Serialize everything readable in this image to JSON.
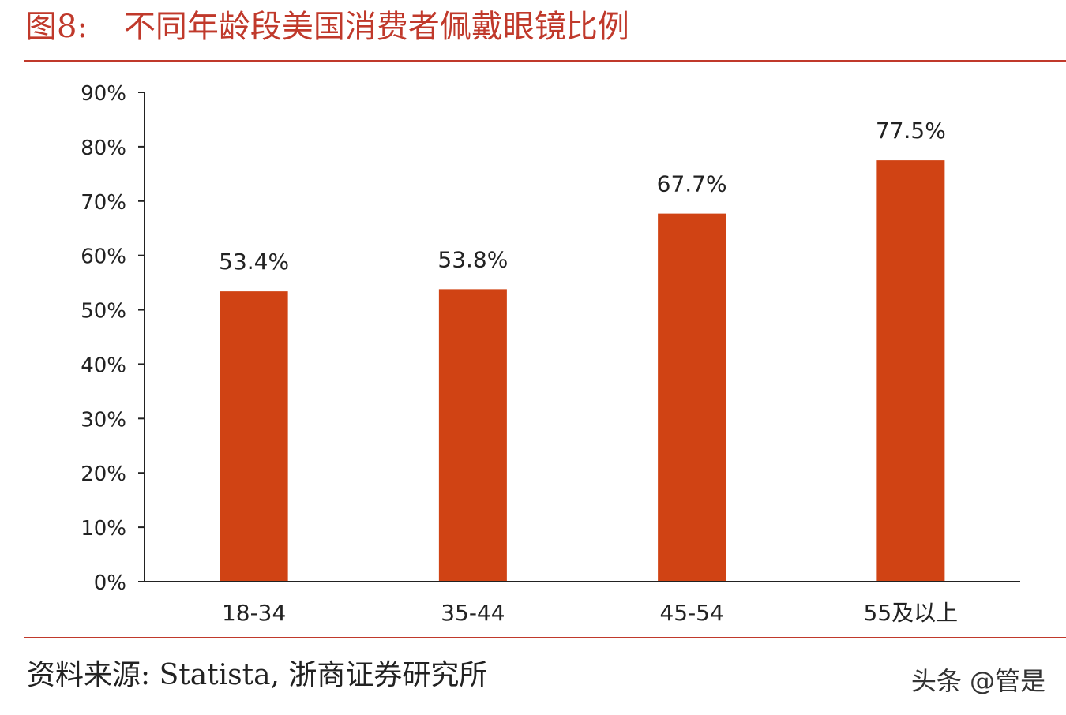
{
  "figure": {
    "label": "图8:",
    "title": "不同年龄段美国消费者佩戴眼镜比例"
  },
  "chart_data": {
    "type": "bar",
    "categories": [
      "18-34",
      "35-44",
      "45-54",
      "55及以上"
    ],
    "values": [
      53.4,
      53.8,
      67.7,
      77.5
    ],
    "data_labels": [
      "53.4%",
      "53.8%",
      "67.7%",
      "77.5%"
    ],
    "ylim": [
      0,
      90
    ],
    "yticks": [
      0,
      10,
      20,
      30,
      40,
      50,
      60,
      70,
      80,
      90
    ],
    "ytick_labels": [
      "0%",
      "10%",
      "20%",
      "30%",
      "40%",
      "50%",
      "60%",
      "70%",
      "80%",
      "90%"
    ],
    "bar_color": "#d04314",
    "grid": false,
    "legend": "none"
  },
  "source": "资料来源: Statista, 浙商证券研究所",
  "watermark": "头条 @管是",
  "colors": {
    "accent": "#c0392b",
    "bar": "#d04314"
  }
}
